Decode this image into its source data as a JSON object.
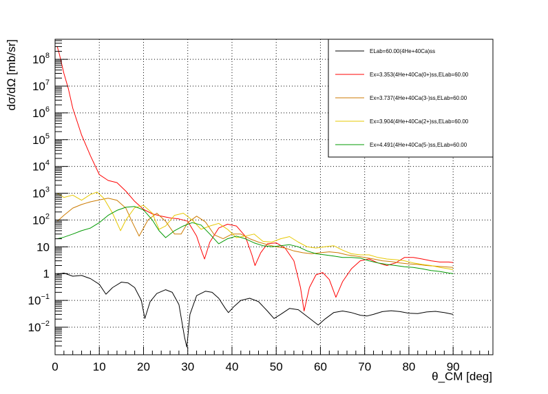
{
  "chart_data": {
    "type": "line",
    "title": "",
    "xlabel": "θ_CM [deg]",
    "ylabel": "dσ/dΩ [mb/sr]",
    "xlim": [
      0,
      99
    ],
    "ylim_log10": [
      -3.03,
      8.75
    ],
    "x_scale": "linear",
    "y_scale": "log",
    "grid": true,
    "legend_position": "top-right",
    "x_ticks": [
      {
        "value": 0,
        "label": "0"
      },
      {
        "value": 10,
        "label": "10"
      },
      {
        "value": 20,
        "label": "20"
      },
      {
        "value": 30,
        "label": "30"
      },
      {
        "value": 40,
        "label": "40"
      },
      {
        "value": 50,
        "label": "50"
      },
      {
        "value": 60,
        "label": "60"
      },
      {
        "value": 70,
        "label": "70"
      },
      {
        "value": 80,
        "label": "80"
      },
      {
        "value": 90,
        "label": "90"
      }
    ],
    "y_ticks": [
      {
        "exp": -2,
        "base": "10",
        "sup": "−2"
      },
      {
        "exp": -1,
        "base": "10",
        "sup": "−1"
      },
      {
        "exp": 0,
        "base": "1",
        "sup": ""
      },
      {
        "exp": 1,
        "base": "10",
        "sup": ""
      },
      {
        "exp": 2,
        "base": "10",
        "sup": "2"
      },
      {
        "exp": 3,
        "base": "10",
        "sup": "3"
      },
      {
        "exp": 4,
        "base": "10",
        "sup": "4"
      },
      {
        "exp": 5,
        "base": "10",
        "sup": "5"
      },
      {
        "exp": 6,
        "base": "10",
        "sup": "6"
      },
      {
        "exp": 7,
        "base": "10",
        "sup": "7"
      },
      {
        "exp": 8,
        "base": "10",
        "sup": "8"
      }
    ],
    "series": [
      {
        "name": "ELab=60.00(4He+40Ca)ss",
        "color": "#000000",
        "x": [
          0.5,
          2,
          4,
          6,
          8,
          10,
          11.5,
          13,
          15,
          16.5,
          18,
          19.5,
          20.3,
          21.5,
          23,
          25,
          26.5,
          28,
          29.3,
          29.8,
          30.5,
          32,
          34,
          35.5,
          37,
          38.5,
          39.2,
          40.5,
          42,
          44,
          46,
          48,
          49.5,
          51,
          53,
          55,
          57,
          59.5,
          61,
          63,
          65,
          67,
          69,
          70.5,
          72,
          74,
          76,
          78,
          80,
          82,
          84,
          86,
          88,
          90
        ],
        "y": [
          0.95,
          1.05,
          0.8,
          0.85,
          0.65,
          0.4,
          0.17,
          0.3,
          0.48,
          0.45,
          0.3,
          0.1,
          0.021,
          0.09,
          0.18,
          0.25,
          0.2,
          0.07,
          0.004,
          0.0018,
          0.03,
          0.15,
          0.22,
          0.2,
          0.12,
          0.05,
          0.035,
          0.06,
          0.1,
          0.12,
          0.09,
          0.04,
          0.021,
          0.03,
          0.05,
          0.045,
          0.025,
          0.012,
          0.02,
          0.035,
          0.04,
          0.035,
          0.028,
          0.026,
          0.03,
          0.038,
          0.041,
          0.038,
          0.033,
          0.032,
          0.037,
          0.039,
          0.035,
          0.03
        ]
      },
      {
        "name": "Ex=3.353(4He+40Ca(0+)ss,ELab=60.00",
        "color": "#ff0000",
        "x": [
          0.5,
          1,
          2,
          3,
          4,
          6,
          8,
          10,
          12,
          14,
          16,
          18,
          20,
          22,
          24,
          26,
          28,
          30,
          32,
          33,
          33.8,
          35,
          37,
          39,
          41,
          43,
          44.5,
          45.2,
          46.5,
          48,
          50,
          52,
          54,
          55.5,
          56.3,
          57.5,
          59,
          60.5,
          62,
          63.5,
          65,
          67,
          69,
          71,
          73,
          75,
          77,
          79,
          81,
          83,
          85,
          87,
          89,
          90
        ],
        "y": [
          300000000,
          150000000,
          30000000,
          8000000,
          1500000,
          150000,
          25000,
          5000,
          3000,
          2500,
          1200,
          500,
          250,
          170,
          140,
          120,
          110,
          90,
          25,
          8,
          3.5,
          15,
          50,
          70,
          60,
          25,
          5,
          2,
          6,
          13,
          14,
          9,
          3,
          0.3,
          0.04,
          0.3,
          0.9,
          1.1,
          0.6,
          0.13,
          0.5,
          1.5,
          3,
          3.5,
          2.5,
          2,
          2.5,
          4,
          4,
          3.5,
          3,
          2.7,
          2.7,
          2.6
        ]
      },
      {
        "name": "Ex=3.737(4He+40Ca(3-)ss,ELab=60.00",
        "color": "#cc7a00",
        "x": [
          0.5,
          2,
          4,
          6,
          8,
          10,
          12,
          14,
          16,
          17.5,
          19,
          21,
          23,
          25,
          27,
          28.5,
          30,
          32,
          34,
          36,
          38,
          40,
          42,
          44,
          46,
          48,
          50,
          52,
          54,
          56,
          58,
          60,
          62,
          64,
          66,
          68,
          70,
          72,
          74,
          76,
          78,
          80,
          82,
          84,
          86,
          88,
          90
        ],
        "y": [
          90,
          150,
          280,
          380,
          480,
          560,
          650,
          550,
          280,
          80,
          25,
          100,
          180,
          90,
          30,
          30,
          80,
          140,
          85,
          28,
          20,
          30,
          30,
          20,
          15,
          12,
          10,
          9,
          7,
          6,
          5.5,
          6,
          6.5,
          6,
          5,
          4.5,
          4,
          3.5,
          3,
          2.8,
          2.5,
          2.3,
          2.2,
          2,
          1.9,
          1.8,
          1.7
        ]
      },
      {
        "name": "Ex=3.904(4He+40Ca(2+)ss,ELab=60.00",
        "color": "#e6c800",
        "x": [
          0.5,
          2,
          4,
          6,
          8,
          9.5,
          11,
          13,
          14.8,
          16,
          18,
          20,
          22,
          23.5,
          25,
          27,
          29,
          31,
          33,
          35,
          37,
          39,
          41,
          43,
          45,
          47,
          49,
          51,
          53,
          55,
          57,
          59,
          61,
          63,
          65,
          67,
          69,
          71,
          73,
          75,
          77,
          79,
          81,
          83,
          85,
          87,
          89,
          90
        ],
        "y": [
          1000,
          700,
          850,
          550,
          900,
          1100,
          650,
          180,
          40,
          100,
          290,
          350,
          180,
          45,
          60,
          150,
          180,
          100,
          45,
          60,
          75,
          45,
          22,
          25,
          30,
          16,
          15,
          20,
          24,
          15,
          10,
          9,
          10,
          11,
          7.5,
          5.5,
          5,
          5,
          4,
          3.5,
          3.3,
          3,
          2.5,
          2.2,
          2,
          1.7,
          1.5,
          1.4
        ]
      },
      {
        "name": "Ex=4.491(4He+40Ca(5-)ss,ELab=60.00",
        "color": "#009900",
        "x": [
          0.5,
          2,
          4,
          6,
          8,
          10,
          12,
          14,
          16,
          18,
          20,
          22,
          23.5,
          25,
          27,
          29,
          31,
          33,
          35,
          37,
          39,
          41,
          43,
          45,
          47,
          49,
          51,
          53,
          55,
          57,
          59,
          61,
          63,
          65,
          67,
          69,
          71,
          73,
          75,
          77,
          79,
          81,
          83,
          85,
          87,
          89,
          90
        ],
        "y": [
          20,
          23,
          30,
          40,
          50,
          80,
          150,
          230,
          300,
          320,
          240,
          100,
          40,
          22,
          40,
          60,
          80,
          65,
          30,
          13,
          20,
          25,
          20,
          14,
          11,
          10,
          11,
          12,
          10,
          7,
          5.5,
          5,
          4.5,
          4,
          4,
          3.8,
          3,
          2.5,
          2.2,
          2,
          1.8,
          1.7,
          1.5,
          1.3,
          1.2,
          1.05,
          1.0
        ]
      }
    ]
  }
}
